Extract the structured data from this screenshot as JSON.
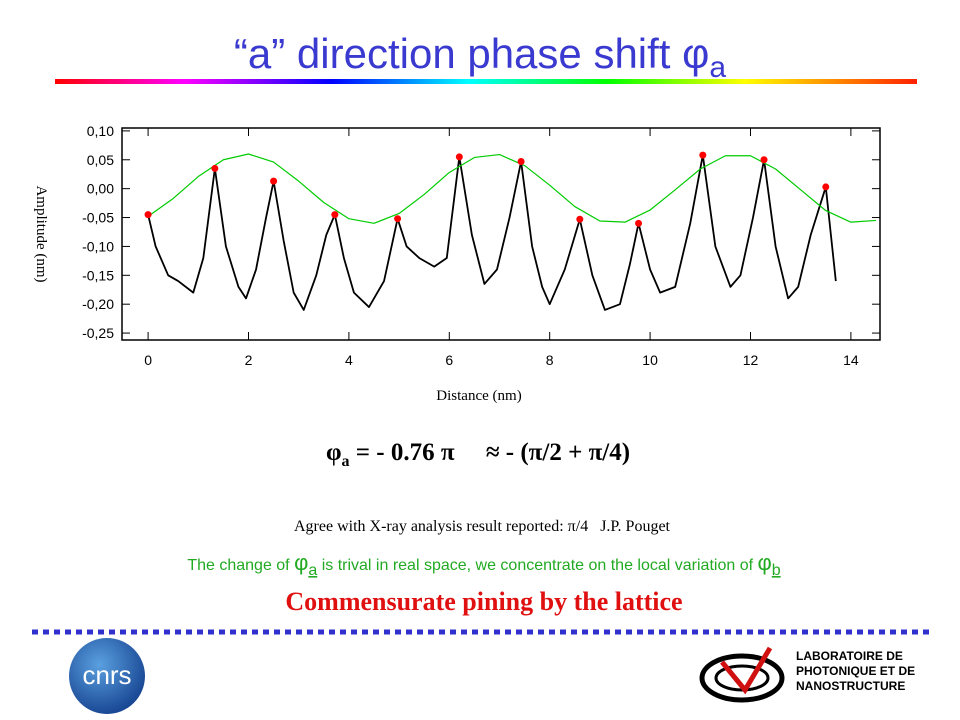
{
  "slide": {
    "title": "“a” direction phase shift φ",
    "title_subscript": "a",
    "formula_symbol": "φ",
    "formula_subscript": "a",
    "formula_rest": " = - 0.76 π     ≈ - (π/2 + π/4)",
    "note": "Agree with X-ray analysis result reported: π/4   J.P. Pouget",
    "change_start": "The change of ",
    "change_symbol_1": "φ",
    "change_subscript_1": "a",
    "change_middle": " is trival in real space, we concentrate on the local variation of ",
    "change_symbol_2": "φ",
    "change_subscript_2": "b",
    "conclusion": "Commensurate pining by the lattice",
    "logo_left": "cnrs",
    "logo_right_lines": [
      "LABORATOIRE DE",
      "PHOTONIQUE ET DE",
      "NANOSTRUCTURE"
    ]
  },
  "chart_data": {
    "type": "line",
    "x_label": "Distance (nm)",
    "y_label": "Amplitude (nm)",
    "xlim": [
      -0.52,
      14.58
    ],
    "ylim": [
      -0.262,
      0.105
    ],
    "xticks": [
      0,
      2,
      4,
      6,
      8,
      10,
      12,
      14
    ],
    "yticks": [
      {
        "value": 0.1,
        "label": "0,10"
      },
      {
        "value": 0.05,
        "label": "0,05"
      },
      {
        "value": 0,
        "label": "0,00"
      },
      {
        "value": -0.05,
        "label": "-0,05"
      },
      {
        "value": -0.1,
        "label": "-0,10"
      },
      {
        "value": -0.15,
        "label": "-0,15"
      },
      {
        "value": -0.2,
        "label": "-0,20"
      },
      {
        "value": -0.25,
        "label": "-0,25"
      }
    ],
    "series": [
      {
        "type": "line",
        "color": "#000000",
        "x": [
          0,
          0.15,
          0.4,
          0.6,
          0.9,
          1.1,
          1.33,
          1.55,
          1.8,
          1.95,
          2.15,
          2.35,
          2.5,
          2.7,
          2.9,
          3.1,
          3.35,
          3.55,
          3.72,
          3.9,
          4.1,
          4.4,
          4.7,
          4.97,
          5.15,
          5.4,
          5.7,
          5.95,
          6.2,
          6.45,
          6.7,
          6.95,
          7.2,
          7.43,
          7.65,
          7.85,
          8.0,
          8.3,
          8.6,
          8.85,
          9.1,
          9.4,
          9.6,
          9.77,
          10.0,
          10.2,
          10.5,
          10.8,
          11.05,
          11.3,
          11.6,
          11.8,
          12.05,
          12.27,
          12.5,
          12.75,
          12.95,
          13.2,
          13.5,
          13.7
        ],
        "values": [
          -0.045,
          -0.1,
          -0.15,
          -0.16,
          -0.18,
          -0.12,
          0.035,
          -0.1,
          -0.17,
          -0.19,
          -0.14,
          -0.05,
          0.013,
          -0.09,
          -0.18,
          -0.21,
          -0.15,
          -0.08,
          -0.045,
          -0.12,
          -0.18,
          -0.205,
          -0.16,
          -0.052,
          -0.1,
          -0.12,
          -0.135,
          -0.12,
          0.055,
          -0.08,
          -0.165,
          -0.14,
          -0.05,
          0.047,
          -0.1,
          -0.17,
          -0.2,
          -0.14,
          -0.053,
          -0.15,
          -0.21,
          -0.2,
          -0.13,
          -0.06,
          -0.14,
          -0.18,
          -0.17,
          -0.06,
          0.058,
          -0.1,
          -0.17,
          -0.15,
          -0.05,
          0.05,
          -0.1,
          -0.19,
          -0.17,
          -0.08,
          0.003,
          -0.16
        ]
      },
      {
        "type": "line",
        "color": "#00cc00",
        "x": [
          0,
          0.5,
          1,
          1.5,
          2,
          2.5,
          3,
          3.5,
          4,
          4.5,
          5,
          5.5,
          6,
          6.5,
          7,
          7.5,
          8,
          8.5,
          9,
          9.5,
          10,
          10.5,
          11,
          11.5,
          12,
          12.5,
          13,
          13.5,
          14,
          14.5
        ],
        "values": [
          -0.048,
          -0.017,
          0.021,
          0.05,
          0.06,
          0.046,
          0.013,
          -0.024,
          -0.052,
          -0.06,
          -0.043,
          -0.01,
          0.028,
          0.054,
          0.059,
          0.04,
          0.006,
          -0.031,
          -0.056,
          -0.058,
          -0.037,
          -0.002,
          0.034,
          0.057,
          0.057,
          0.034,
          -0.002,
          -0.038,
          -0.058,
          -0.055
        ]
      },
      {
        "type": "scatter",
        "color": "#ff0000",
        "x": [
          0,
          1.33,
          2.5,
          3.72,
          4.97,
          6.2,
          7.43,
          8.6,
          9.77,
          11.05,
          12.27,
          13.5
        ],
        "values": [
          -0.045,
          0.035,
          0.013,
          -0.045,
          -0.052,
          0.055,
          0.047,
          -0.053,
          -0.06,
          0.058,
          0.05,
          0.003
        ]
      }
    ]
  }
}
